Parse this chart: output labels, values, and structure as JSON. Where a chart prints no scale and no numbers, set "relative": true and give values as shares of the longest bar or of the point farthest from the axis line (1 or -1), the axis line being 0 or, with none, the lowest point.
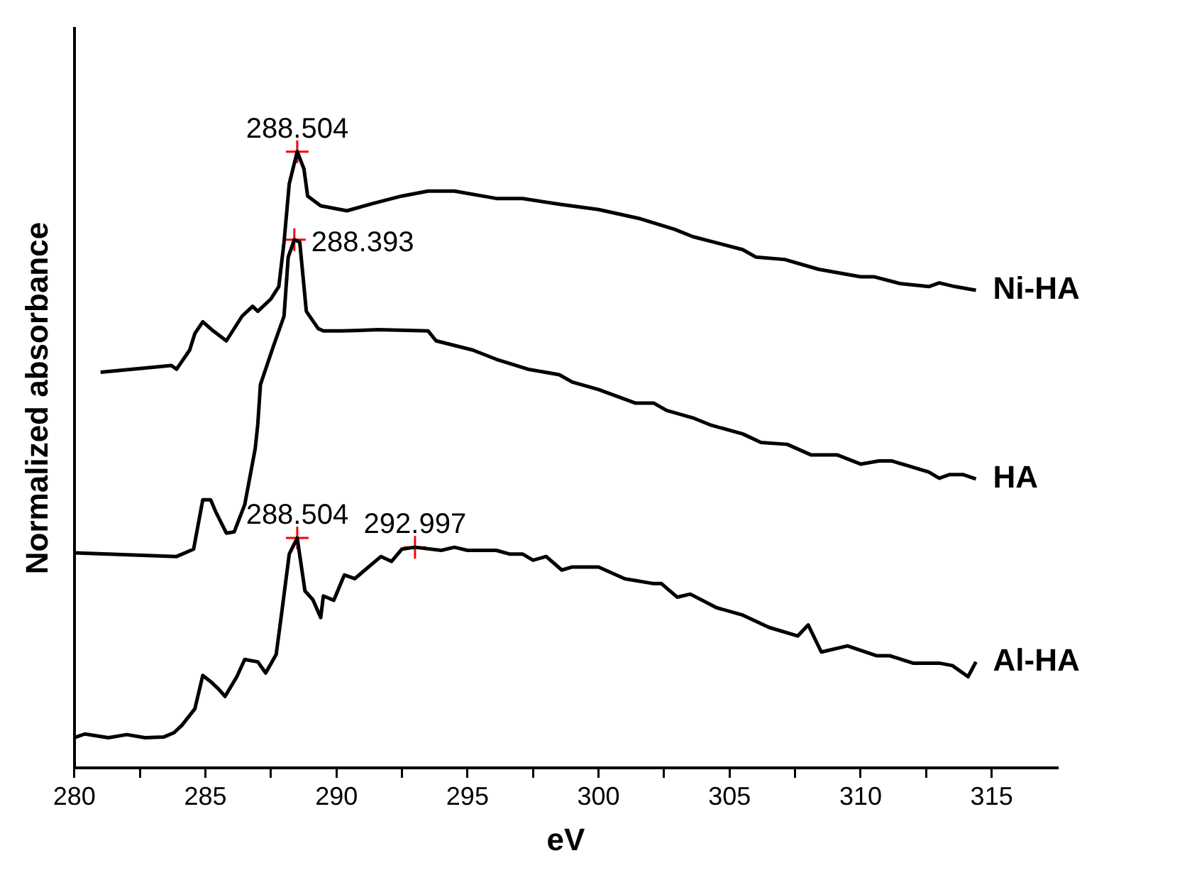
{
  "chart_data": {
    "type": "line",
    "xlabel": "eV",
    "ylabel": "Normalized absorbance",
    "relative": true,
    "grid": false,
    "legend": false,
    "line_style": "solid",
    "xlim": [
      280,
      317.5
    ],
    "xticks": [
      280,
      {
        "value": 282.5,
        "label": null
      },
      285,
      {
        "value": 287.5,
        "label": null
      },
      290,
      {
        "value": 292.5,
        "label": null
      },
      295,
      {
        "value": 297.5,
        "label": null
      },
      300,
      {
        "value": 302.5,
        "label": null
      },
      305,
      {
        "value": 307.5,
        "label": null
      },
      310,
      {
        "value": 312.5,
        "label": null
      },
      315
    ],
    "series": [
      {
        "name": "Ni-HA",
        "color": "#000000",
        "marker": "none",
        "x": [
          281.0,
          283.0,
          283.7,
          283.9,
          284.4,
          284.6,
          284.9,
          285.3,
          285.8,
          286.4,
          286.8,
          287.0,
          287.5,
          287.8,
          288.0,
          288.2,
          288.504,
          288.76,
          288.9,
          289.4,
          290.4,
          291.4,
          292.5,
          293.5,
          294.5,
          296.1,
          297.1,
          298.6,
          300.0,
          301.6,
          302.9,
          303.6,
          305.5,
          306.0,
          307.1,
          308.4,
          310.0,
          310.5,
          311.5,
          312.6,
          313.0,
          313.6,
          314.4
        ],
        "values": [
          0.642,
          0.65,
          0.653,
          0.647,
          0.678,
          0.705,
          0.724,
          0.709,
          0.693,
          0.733,
          0.749,
          0.741,
          0.761,
          0.781,
          0.853,
          0.948,
          1,
          0.972,
          0.928,
          0.912,
          0.904,
          0.916,
          0.928,
          0.936,
          0.936,
          0.924,
          0.924,
          0.914,
          0.906,
          0.891,
          0.874,
          0.862,
          0.841,
          0.829,
          0.825,
          0.809,
          0.797,
          0.797,
          0.786,
          0.781,
          0.787,
          0.781,
          0.775
        ]
      },
      {
        "name": "HA",
        "color": "#000000",
        "marker": "none",
        "x": [
          280.0,
          283.9,
          284.55,
          284.9,
          285.2,
          285.4,
          285.8,
          286.1,
          286.5,
          286.9,
          287.0,
          287.1,
          287.6,
          288.0,
          288.16,
          288.393,
          288.6,
          288.85,
          289.3,
          289.5,
          290.2,
          291.6,
          293.5,
          293.8,
          295.2,
          296.1,
          297.3,
          298.5,
          299.0,
          300.0,
          301.4,
          302.1,
          302.6,
          303.6,
          304.3,
          305.5,
          306.2,
          307.2,
          308.1,
          309.1,
          310.0,
          310.7,
          311.2,
          312.6,
          313.0,
          313.4,
          313.9,
          314.4
        ],
        "values": [
          0.349,
          0.343,
          0.355,
          0.435,
          0.435,
          0.415,
          0.381,
          0.383,
          0.427,
          0.518,
          0.558,
          0.622,
          0.685,
          0.733,
          0.829,
          0.857,
          0.853,
          0.741,
          0.713,
          0.709,
          0.709,
          0.711,
          0.709,
          0.693,
          0.678,
          0.663,
          0.647,
          0.638,
          0.626,
          0.614,
          0.592,
          0.592,
          0.58,
          0.568,
          0.556,
          0.542,
          0.528,
          0.525,
          0.508,
          0.508,
          0.493,
          0.498,
          0.498,
          0.48,
          0.47,
          0.476,
          0.476,
          0.469
        ]
      },
      {
        "name": "Al-HA",
        "color": "#000000",
        "marker": "none",
        "x": [
          280.0,
          280.4,
          281.3,
          282.0,
          282.7,
          283.4,
          283.8,
          284.1,
          284.6,
          284.9,
          285.2,
          285.5,
          285.75,
          286.2,
          286.5,
          287.0,
          287.3,
          287.7,
          287.9,
          288.2,
          288.504,
          288.8,
          289.1,
          289.4,
          289.5,
          289.9,
          290.3,
          290.7,
          291.25,
          291.7,
          292.1,
          292.5,
          292.997,
          294.0,
          294.5,
          295.0,
          296.1,
          296.6,
          297.1,
          297.5,
          298.0,
          298.6,
          299.0,
          300.0,
          301.0,
          302.1,
          302.4,
          303.0,
          303.5,
          304.5,
          305.5,
          306.5,
          307.6,
          308.0,
          308.5,
          309.5,
          310.6,
          311.1,
          312.0,
          313.0,
          313.5,
          314.1,
          314.4
        ],
        "values": [
          0.049,
          0.055,
          0.049,
          0.054,
          0.049,
          0.05,
          0.057,
          0.069,
          0.096,
          0.15,
          0.14,
          0.128,
          0.116,
          0.148,
          0.176,
          0.172,
          0.154,
          0.184,
          0.248,
          0.347,
          0.373,
          0.287,
          0.273,
          0.244,
          0.279,
          0.272,
          0.313,
          0.307,
          0.327,
          0.343,
          0.335,
          0.355,
          0.358,
          0.353,
          0.358,
          0.353,
          0.353,
          0.347,
          0.347,
          0.337,
          0.343,
          0.321,
          0.326,
          0.326,
          0.307,
          0.299,
          0.299,
          0.277,
          0.282,
          0.26,
          0.248,
          0.228,
          0.214,
          0.232,
          0.188,
          0.198,
          0.182,
          0.182,
          0.17,
          0.17,
          0.166,
          0.148,
          0.172
        ]
      },
      {
        "type": "scatter",
        "color": "#ff0000",
        "marker": "cross",
        "x": [
          288.504,
          288.393,
          288.504,
          292.997
        ],
        "values": [
          1,
          0.857,
          0.373,
          0.358
        ]
      }
    ],
    "annotations": [
      {
        "text": "288.504",
        "x": 288.504,
        "y": 1
      },
      {
        "text": "288.393",
        "x": 288.393,
        "y": 0.857
      },
      {
        "text": "288.504",
        "x": 288.504,
        "y": 0.373
      },
      {
        "text": "292.997",
        "x": 292.997,
        "y": 0.358
      }
    ]
  }
}
